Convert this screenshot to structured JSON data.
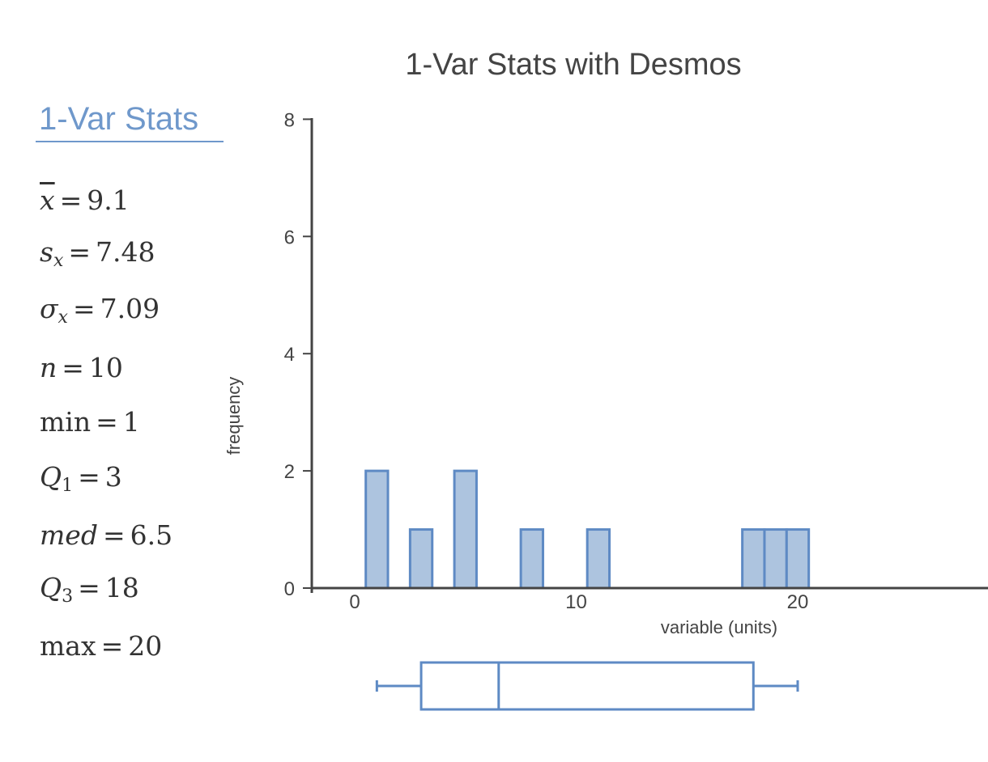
{
  "stats_panel": {
    "title": "1-Var Stats",
    "rows": [
      {
        "symbol": "x",
        "sub": "",
        "value": "9.1",
        "kind": "mean"
      },
      {
        "symbol": "s",
        "sub": "x",
        "value": "7.48",
        "kind": "sample-sd"
      },
      {
        "symbol": "σ",
        "sub": "x",
        "value": "7.09",
        "kind": "population-sd"
      },
      {
        "symbol": "n",
        "sub": "",
        "value": "10",
        "kind": "count"
      },
      {
        "symbol": "min",
        "sub": "",
        "value": "1",
        "kind": "min"
      },
      {
        "symbol": "Q",
        "sub": "1",
        "value": "3",
        "kind": "q1"
      },
      {
        "symbol": "med",
        "sub": "",
        "value": "6.5",
        "kind": "median"
      },
      {
        "symbol": "Q",
        "sub": "3",
        "value": "18",
        "kind": "q3"
      },
      {
        "symbol": "max",
        "sub": "",
        "value": "20",
        "kind": "max"
      }
    ],
    "equals": "="
  },
  "colors": {
    "accent": "#6f98cb",
    "bar_fill": "#adc4df",
    "bar_stroke": "#5e8ac4",
    "axis": "#444444",
    "text": "#333333"
  },
  "chart_data": [
    {
      "type": "bar",
      "subtype": "histogram",
      "title": "1-Var Stats with Desmos",
      "xlabel": "variable (units)",
      "ylabel": "frequency",
      "bin_width": 1,
      "bins": [
        {
          "center": 1,
          "count": 2
        },
        {
          "center": 3,
          "count": 1
        },
        {
          "center": 5,
          "count": 2
        },
        {
          "center": 8,
          "count": 1
        },
        {
          "center": 11,
          "count": 1
        },
        {
          "center": 18,
          "count": 1
        },
        {
          "center": 19,
          "count": 1
        },
        {
          "center": 20,
          "count": 1
        }
      ],
      "raw_data": [
        1,
        1,
        3,
        5,
        5,
        8,
        11,
        18,
        19,
        20
      ],
      "xlim": [
        -2,
        28.5
      ],
      "ylim": [
        0,
        8
      ],
      "xticks": [
        0,
        10,
        20
      ],
      "yticks": [
        0,
        2,
        4,
        6,
        8
      ],
      "grid": false
    },
    {
      "type": "boxplot",
      "min": 1,
      "q1": 3,
      "median": 6.5,
      "q3": 18,
      "max": 20
    }
  ]
}
